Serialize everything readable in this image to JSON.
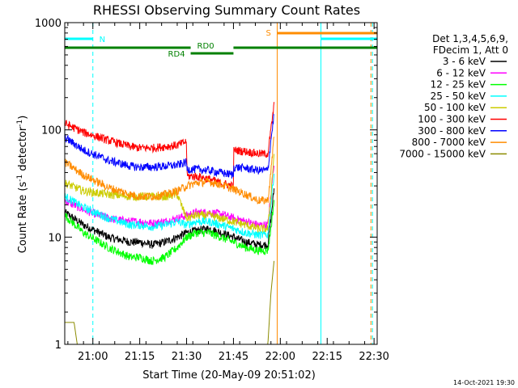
{
  "chart_data": {
    "type": "line",
    "title": "RHESSI Observing Summary Count Rates",
    "xlabel": "Start Time (20-May-09 20:51:02)",
    "ylabel": "Count Rate (s⁻¹ detector⁻¹)",
    "ylabel_main": "Count Rate (s",
    "ylabel_sup1": "-1",
    "ylabel_mid": " detector",
    "ylabel_sup2": "-1",
    "ylabel_end": ")",
    "yscale": "log",
    "ylim": [
      1,
      1000
    ],
    "xlim": [
      -6,
      94
    ],
    "x_unit": "minutes after 20:57",
    "xticks": [
      {
        "value": 3,
        "label": "21:00"
      },
      {
        "value": 18,
        "label": "21:15"
      },
      {
        "value": 33,
        "label": "21:30"
      },
      {
        "value": 48,
        "label": "21:45"
      },
      {
        "value": 63,
        "label": "22:00"
      },
      {
        "value": 78,
        "label": "22:15"
      },
      {
        "value": 93,
        "label": "22:30"
      }
    ],
    "yticks": [
      {
        "value": 1,
        "label": "1"
      },
      {
        "value": 10,
        "label": "10"
      },
      {
        "value": 100,
        "label": "100"
      },
      {
        "value": 1000,
        "label": "1000"
      }
    ],
    "legend_header": [
      "Det 1,3,4,5,6,9,",
      "FDecim 1, Att 0"
    ],
    "legend_position": "right",
    "series": [
      {
        "name": "3 - 6 keV",
        "color": "#000000",
        "x": [
          -6,
          0,
          8,
          15,
          18,
          22,
          26,
          30,
          33,
          36,
          40,
          44,
          48,
          52,
          56,
          59,
          60,
          61
        ],
        "values": [
          17,
          13,
          10,
          9,
          9,
          8.5,
          9,
          10,
          11,
          11.5,
          12,
          11,
          10,
          9,
          8.5,
          8.5,
          15,
          28
        ]
      },
      {
        "name": "6 - 12 keV",
        "color": "#ff00ff",
        "x": [
          -6,
          0,
          8,
          15,
          18,
          22,
          26,
          30,
          33,
          36,
          40,
          44,
          48,
          52,
          56,
          59,
          60,
          61
        ],
        "values": [
          22,
          18,
          15,
          14,
          14,
          13.5,
          14,
          15,
          16,
          17,
          17,
          16.5,
          15,
          14,
          13,
          13,
          25,
          50
        ]
      },
      {
        "name": "12 - 25 keV",
        "color": "#00ff00",
        "x": [
          -6,
          0,
          8,
          15,
          18,
          22,
          26,
          30,
          33,
          36,
          40,
          44,
          48,
          52,
          56,
          59,
          60,
          61
        ],
        "values": [
          16,
          11,
          8,
          6.5,
          6.5,
          6,
          6.5,
          8,
          10,
          11,
          11,
          10,
          9,
          8,
          7.5,
          7.5,
          12,
          22
        ]
      },
      {
        "name": "25 - 50 keV",
        "color": "#00ffff",
        "x": [
          -6,
          0,
          8,
          15,
          18,
          22,
          26,
          30,
          33,
          36,
          40,
          44,
          48,
          52,
          56,
          59,
          60,
          61
        ],
        "values": [
          24,
          19,
          15,
          13,
          13,
          12.5,
          13,
          14,
          13,
          14,
          14,
          13,
          12,
          11,
          10.5,
          10.5,
          20,
          40
        ]
      },
      {
        "name": "50 - 100 keV",
        "color": "#cccc00",
        "x": [
          -6,
          0,
          8,
          15,
          18,
          22,
          26,
          30,
          33,
          36,
          40,
          44,
          48,
          52,
          56,
          59,
          60,
          61
        ],
        "values": [
          32,
          27,
          25,
          24,
          24,
          24,
          24,
          25,
          15,
          16,
          16,
          15,
          14,
          13,
          12,
          12,
          25,
          60
        ]
      },
      {
        "name": "100 - 300 keV",
        "color": "#ff0000",
        "x": [
          -6,
          0,
          8,
          15,
          18,
          22,
          26,
          30,
          33,
          33.1,
          36,
          40,
          44,
          48,
          48.1,
          52,
          56,
          59,
          60,
          61
        ],
        "values": [
          115,
          95,
          80,
          70,
          68,
          68,
          70,
          72,
          78,
          37,
          37,
          35,
          32,
          30,
          65,
          63,
          60,
          60,
          100,
          170
        ]
      },
      {
        "name": "300 - 800 keV",
        "color": "#0000ff",
        "x": [
          -6,
          0,
          8,
          15,
          18,
          22,
          26,
          30,
          33,
          33.1,
          36,
          40,
          44,
          48,
          48.1,
          52,
          56,
          59,
          60,
          61
        ],
        "values": [
          85,
          65,
          52,
          46,
          45,
          45,
          46,
          47,
          50,
          43,
          43,
          42,
          40,
          38,
          45,
          44,
          42,
          42,
          80,
          140
        ]
      },
      {
        "name": "800 - 7000 keV",
        "color": "#ff8c00",
        "x": [
          -6,
          0,
          8,
          15,
          18,
          22,
          26,
          30,
          33,
          36,
          40,
          44,
          48,
          52,
          56,
          59,
          60,
          61
        ],
        "values": [
          50,
          38,
          29,
          25,
          24,
          24,
          25,
          27,
          30,
          32,
          33,
          31,
          28,
          25,
          22,
          22,
          40,
          90
        ]
      },
      {
        "name": "7000 - 15000 keV",
        "color": "#8b8b00",
        "x": [
          -6,
          -3,
          -2,
          0,
          59,
          60,
          61
        ],
        "values": [
          1.6,
          1.6,
          1,
          1,
          1,
          3,
          6
        ]
      }
    ],
    "state_bars": [
      {
        "label": "N",
        "color": "#00ffff",
        "segments": [
          [
            -6,
            3
          ],
          [
            76,
            94
          ]
        ]
      },
      {
        "label": "S",
        "color": "#ff8c00",
        "segments": [
          [
            62,
            94
          ]
        ]
      },
      {
        "label": "RD0",
        "color": "#008000",
        "segments": [
          [
            -6,
            34.3
          ],
          [
            48,
            94
          ]
        ]
      },
      {
        "label": "RD4",
        "color": "#008000",
        "segments": [
          [
            34.3,
            48
          ]
        ]
      }
    ],
    "vertical_markers": [
      {
        "x": -6,
        "color": "#00ffff",
        "style": "solid"
      },
      {
        "x": 3,
        "color": "#00ffff",
        "style": "dashed"
      },
      {
        "x": 62,
        "color": "#ff8c00",
        "style": "solid"
      },
      {
        "x": 76,
        "color": "#00ffff",
        "style": "solid"
      },
      {
        "x": 92,
        "color": "#ff8c00",
        "style": "dashed"
      },
      {
        "x": 92.5,
        "color": "#00ffff",
        "style": "dashed"
      }
    ],
    "footer_timestamp": "14-Oct-2021 19:30"
  }
}
